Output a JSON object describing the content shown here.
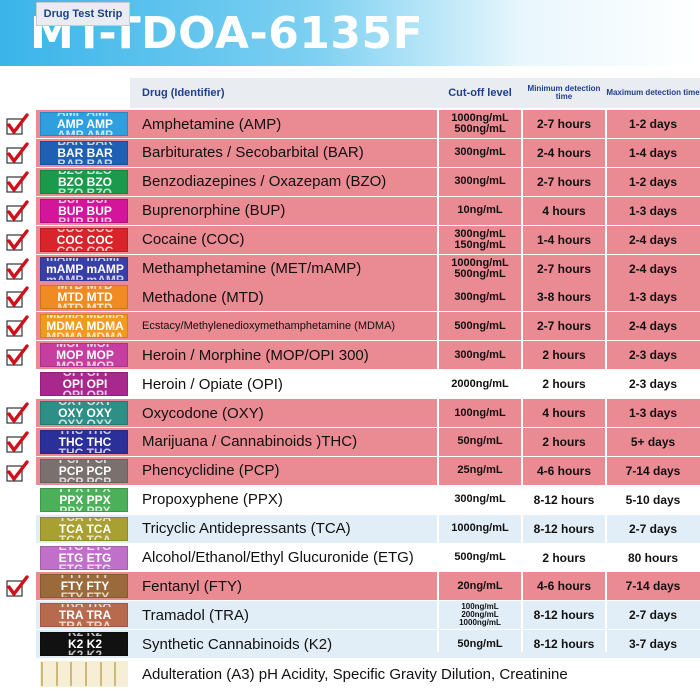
{
  "title": "MT-TDOA-6135F",
  "headers": {
    "strip": "Drug Test Strip",
    "drug": "Drug (Identifier)",
    "cutoff": "Cut-off level",
    "min": "Minimum detection time",
    "max": "Maximum detection time"
  },
  "rows": [
    {
      "code": "AMP",
      "drug": "Amphetamine (AMP)",
      "cutoff": "1000ng/mL\n500ng/mL",
      "min": "2-7 hours",
      "max": "1-2 days",
      "checked": true,
      "color": "#2f9fe0"
    },
    {
      "code": "BAR",
      "drug": "Barbiturates / Secobarbital (BAR)",
      "cutoff": "300ng/mL",
      "min": "2-4 hours",
      "max": "1-4 days",
      "checked": true,
      "color": "#1f5fb4"
    },
    {
      "code": "BZO",
      "drug": "Benzodiazepines / Oxazepam (BZO)",
      "cutoff": "300ng/mL",
      "min": "2-7 hours",
      "max": "1-2 days",
      "checked": true,
      "color": "#1a9a4a"
    },
    {
      "code": "BUP",
      "drug": "Buprenorphine (BUP)",
      "cutoff": "10ng/mL",
      "min": "4 hours",
      "max": "1-3 days",
      "checked": true,
      "color": "#d4149a"
    },
    {
      "code": "COC",
      "drug": "Cocaine (COC)",
      "cutoff": "300ng/mL\n150ng/mL",
      "min": "1-4 hours",
      "max": "2-4 days",
      "checked": true,
      "color": "#d8242a"
    },
    {
      "code": "mAMP",
      "drug": "Methamphetamine (MET/mAMP)",
      "cutoff": "1000ng/mL\n500ng/mL",
      "min": "2-7 hours",
      "max": "2-4 days",
      "checked": true,
      "color": "#3a3fa8"
    },
    {
      "code": "MTD",
      "drug": "Methadone (MTD)",
      "cutoff": "300ng/mL",
      "min": "3-8 hours",
      "max": "1-3 days",
      "checked": true,
      "color": "#f08a22"
    },
    {
      "code": "MDMA",
      "drug": "Ecstacy/Methylenedioxymethamphetamine (MDMA)",
      "cutoff": "500ng/mL",
      "min": "2-7 hours",
      "max": "2-4 days",
      "checked": true,
      "color": "#f29a1e"
    },
    {
      "code": "MOP",
      "drug": "Heroin / Morphine (MOP/OPI 300)",
      "cutoff": "300ng/mL",
      "min": "2 hours",
      "max": "2-3 days",
      "checked": true,
      "color": "#c63ea0"
    },
    {
      "code": "OPI",
      "drug": "Heroin / Opiate (OPI)",
      "cutoff": "2000ng/mL",
      "min": "2 hours",
      "max": "2-3 days",
      "checked": false,
      "color": "#a8288e"
    },
    {
      "code": "OXY",
      "drug": "Oxycodone (OXY)",
      "cutoff": "100ng/mL",
      "min": "4 hours",
      "max": "1-3 days",
      "checked": true,
      "color": "#2e8f86"
    },
    {
      "code": "THC",
      "drug": "Marijuana / Cannabinoids )THC)",
      "cutoff": "50ng/mL",
      "min": "2 hours",
      "max": "5+ days",
      "checked": true,
      "color": "#2a2f9a"
    },
    {
      "code": "PCP",
      "drug": "Phencyclidine (PCP)",
      "cutoff": "25ng/mL",
      "min": "4-6 hours",
      "max": "7-14 days",
      "checked": true,
      "color": "#7a716e"
    },
    {
      "code": "PPX",
      "drug": "Propoxyphene (PPX)",
      "cutoff": "300ng/mL",
      "min": "8-12 hours",
      "max": "5-10 days",
      "checked": false,
      "color": "#4cb05a"
    },
    {
      "code": "TCA",
      "drug": "Tricyclic Antidepressants (TCA)",
      "cutoff": "1000ng/mL",
      "min": "8-12 hours",
      "max": "2-7 days",
      "checked": false,
      "color": "#a8a030"
    },
    {
      "code": "ETG",
      "drug": "Alcohol/Ethanol/Ethyl Glucuronide (ETG)",
      "cutoff": "500ng/mL",
      "min": "2 hours",
      "max": "80 hours",
      "checked": false,
      "color": "#c070c8"
    },
    {
      "code": "FTY",
      "drug": "Fentanyl (FTY)",
      "cutoff": "20ng/mL",
      "min": "4-6 hours",
      "max": "7-14 days",
      "checked": true,
      "color": "#9a6a3a"
    },
    {
      "code": "TRA",
      "drug": "Tramadol (TRA)",
      "cutoff": "100ng/mL\n200ng/mL\n1000ng/mL",
      "min": "8-12 hours",
      "max": "2-7 days",
      "checked": false,
      "color": "#b86a4e"
    },
    {
      "code": "K2",
      "drug": "Synthetic Cannabinoids (K2)",
      "cutoff": "50ng/mL",
      "min": "8-12 hours",
      "max": "3-7 days",
      "checked": false,
      "color": "#111111"
    }
  ],
  "adulteration": {
    "text": "Adulteration (A3) pH Acidity, Specific Gravity Dilution, Creatinine",
    "color": "#f6efd6"
  }
}
